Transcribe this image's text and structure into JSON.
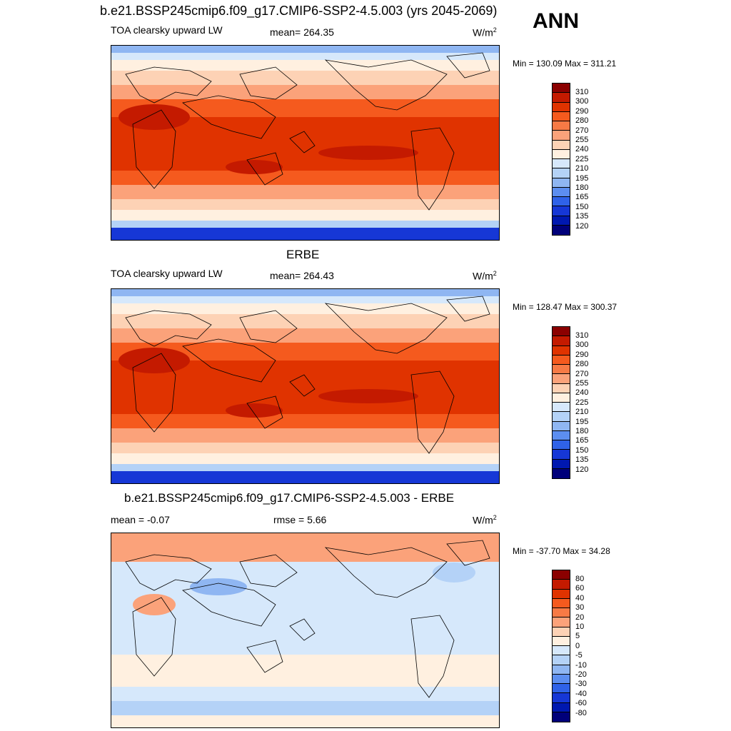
{
  "header": {
    "case_title": "b.e21.BSSP245cmip6.f09_g17.CMIP6-SSP2-4.5.003 (yrs 2045-2069)",
    "season": "ANN"
  },
  "panels": [
    {
      "id": "model",
      "title": "",
      "left_label": "TOA clearsky upward LW",
      "center_label": "mean= 264.35",
      "unit": "W/m",
      "unit_sup": "2",
      "minmax": "Min = 130.09 Max = 311.21",
      "levels": [
        "310",
        "300",
        "290",
        "280",
        "270",
        "255",
        "240",
        "225",
        "210",
        "195",
        "180",
        "165",
        "150",
        "135",
        "120"
      ],
      "colors": [
        "#8b0000",
        "#c41a00",
        "#e03300",
        "#f55a1e",
        "#f77a45",
        "#fba27a",
        "#fdd2b5",
        "#fff0e0",
        "#d6e8fb",
        "#b4d2f7",
        "#8fb6f2",
        "#5c8ef0",
        "#2f62e8",
        "#1637d6",
        "#0018b0",
        "#00007a"
      ]
    },
    {
      "id": "obs",
      "title": "ERBE",
      "left_label": "TOA clearsky upward LW",
      "center_label": "mean= 264.43",
      "unit": "W/m",
      "unit_sup": "2",
      "minmax": "Min = 128.47 Max = 300.37",
      "levels": [
        "310",
        "300",
        "290",
        "280",
        "270",
        "255",
        "240",
        "225",
        "210",
        "195",
        "180",
        "165",
        "150",
        "135",
        "120"
      ],
      "colors": [
        "#8b0000",
        "#c41a00",
        "#e03300",
        "#f55a1e",
        "#f77a45",
        "#fba27a",
        "#fdd2b5",
        "#fff0e0",
        "#d6e8fb",
        "#b4d2f7",
        "#8fb6f2",
        "#5c8ef0",
        "#2f62e8",
        "#1637d6",
        "#0018b0",
        "#00007a"
      ]
    },
    {
      "id": "diff",
      "title": "b.e21.BSSP245cmip6.f09_g17.CMIP6-SSP2-4.5.003 - ERBE",
      "left_label": "mean =  -0.07",
      "center_label": "rmse =   5.66",
      "unit": "W/m",
      "unit_sup": "2",
      "minmax": "Min = -37.70 Max =  34.28",
      "levels": [
        "80",
        "60",
        "40",
        "30",
        "20",
        "10",
        "5",
        "0",
        "-5",
        "-10",
        "-20",
        "-30",
        "-40",
        "-60",
        "-80"
      ],
      "colors": [
        "#8b0000",
        "#c41a00",
        "#e03300",
        "#f55a1e",
        "#f77a45",
        "#fba27a",
        "#fdd2b5",
        "#fff0e0",
        "#d6e8fb",
        "#b4d2f7",
        "#8fb6f2",
        "#5c8ef0",
        "#2f62e8",
        "#1637d6",
        "#0018b0",
        "#00007a"
      ]
    }
  ]
}
